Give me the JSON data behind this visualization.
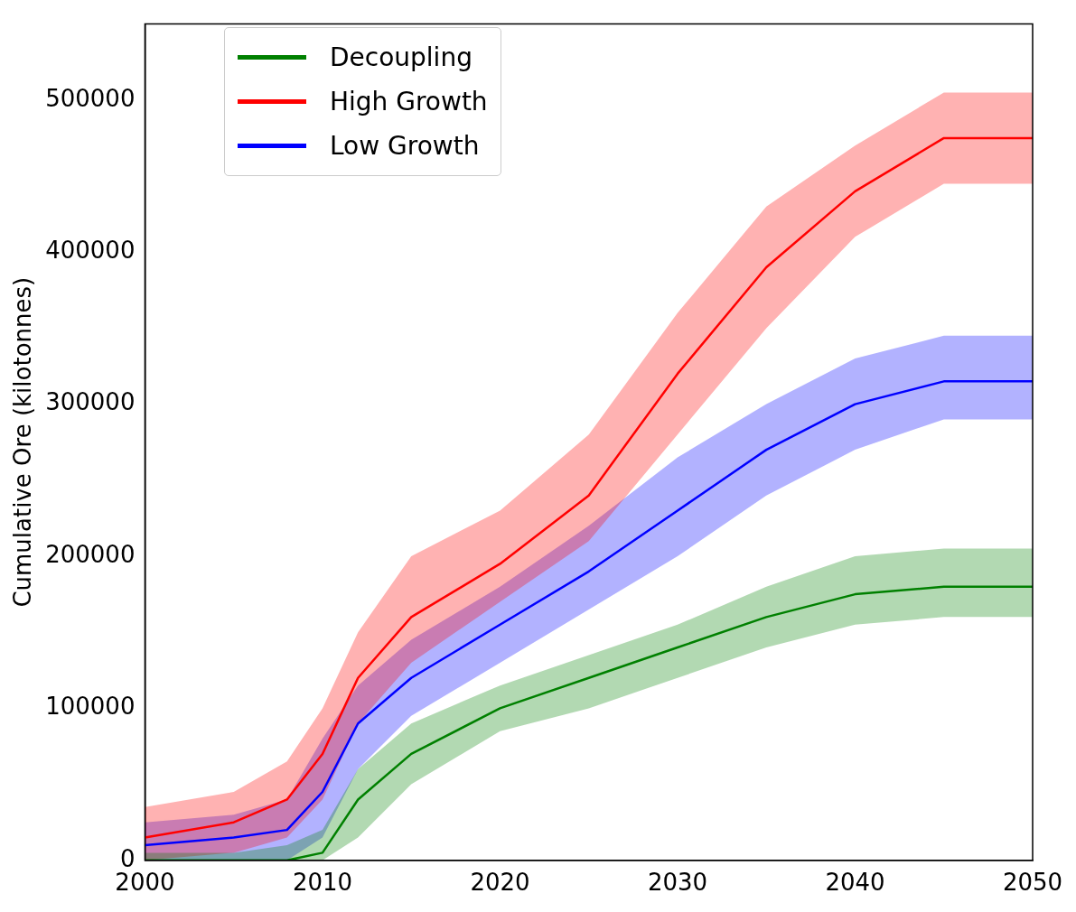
{
  "chart_data": {
    "type": "line",
    "ylabel": "Cumulative Ore (kilotonnes)",
    "x": [
      2000,
      2005,
      2008,
      2010,
      2012,
      2015,
      2020,
      2025,
      2030,
      2035,
      2040,
      2045,
      2050
    ],
    "xlim": [
      2000,
      2050
    ],
    "xticks": [
      2000,
      2010,
      2020,
      2030,
      2040,
      2050
    ],
    "ylim": [
      0,
      550000
    ],
    "yticks": [
      0,
      100000,
      200000,
      300000,
      400000,
      500000
    ],
    "grid": false,
    "legend": "top left",
    "marker": "none",
    "line_style": "solid",
    "series": [
      {
        "name": "Decoupling",
        "color": "#008000",
        "values": [
          0,
          0,
          0,
          5000,
          40000,
          70000,
          100000,
          120000,
          140000,
          160000,
          175000,
          180000,
          180000
        ],
        "lower": [
          0,
          0,
          0,
          0,
          15000,
          50000,
          85000,
          100000,
          120000,
          140000,
          155000,
          160000,
          160000
        ],
        "upper": [
          5000,
          5000,
          10000,
          20000,
          60000,
          90000,
          115000,
          135000,
          155000,
          180000,
          200000,
          205000,
          205000
        ]
      },
      {
        "name": "High Growth",
        "color": "#ff0000",
        "values": [
          15000,
          25000,
          40000,
          70000,
          120000,
          160000,
          195000,
          240000,
          320000,
          390000,
          440000,
          475000,
          475000
        ],
        "lower": [
          0,
          5000,
          15000,
          40000,
          90000,
          130000,
          170000,
          210000,
          280000,
          350000,
          410000,
          445000,
          445000
        ],
        "upper": [
          35000,
          45000,
          65000,
          100000,
          150000,
          200000,
          230000,
          280000,
          360000,
          430000,
          470000,
          505000,
          505000
        ]
      },
      {
        "name": "Low Growth",
        "color": "#0000ff",
        "values": [
          10000,
          15000,
          20000,
          45000,
          90000,
          120000,
          155000,
          190000,
          230000,
          270000,
          300000,
          315000,
          315000
        ],
        "lower": [
          0,
          0,
          0,
          15000,
          60000,
          95000,
          130000,
          165000,
          200000,
          240000,
          270000,
          290000,
          290000
        ],
        "upper": [
          25000,
          30000,
          40000,
          80000,
          115000,
          145000,
          180000,
          220000,
          265000,
          300000,
          330000,
          345000,
          345000
        ]
      }
    ]
  }
}
